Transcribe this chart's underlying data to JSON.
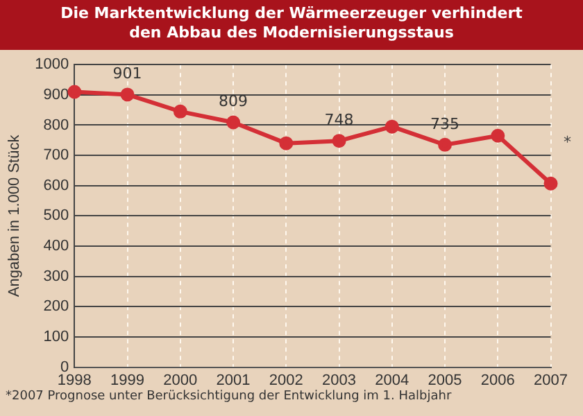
{
  "chart_data": {
    "type": "line",
    "title": "Die Marktentwicklung der Wärmeerzeuger verhindert den Abbau des Modernisierungsstaus",
    "ylabel": "Angaben in 1.000 Stück",
    "categories": [
      "1998",
      "1999",
      "2000",
      "2001",
      "2002",
      "2003",
      "2004",
      "2005",
      "2006",
      "2007"
    ],
    "series": [
      {
        "color": "#d42f36",
        "values": [
          910,
          901,
          845,
          809,
          740,
          748,
          795,
          735,
          765,
          607
        ],
        "value_labels": [
          null,
          "901",
          null,
          "809",
          null,
          "748",
          null,
          "735",
          null,
          null
        ]
      }
    ],
    "ylim": [
      0,
      1000
    ],
    "yticks": [
      0,
      100,
      200,
      300,
      400,
      500,
      600,
      700,
      800,
      900,
      1000
    ],
    "grid": true,
    "marker": "circle",
    "legend": false,
    "annotations": [
      "*",
      "*2007 Prognose unter Berücksichtigung der Entwicklung im 1. Halbjahr"
    ]
  }
}
